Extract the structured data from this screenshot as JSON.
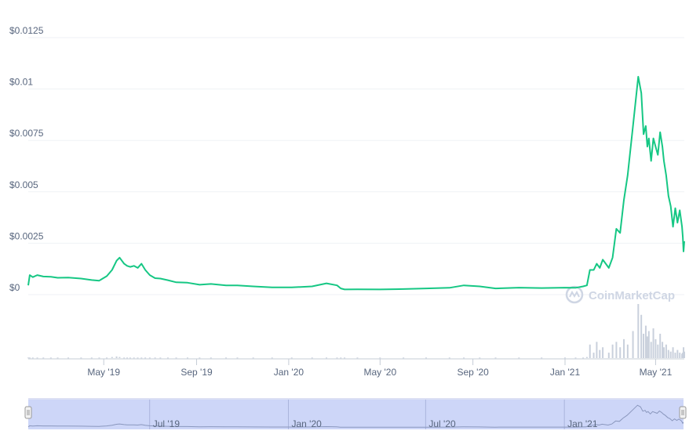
{
  "watermark": {
    "text": "CoinMarketCap"
  },
  "colors": {
    "line": "#16c784",
    "volume": "#c9d0dc",
    "navigator_bg": "#cdd6f8",
    "navigator_line": "#8a97bd",
    "grid": "#eff2f5"
  },
  "chart_data": {
    "type": "line",
    "title": "",
    "xlabel": "",
    "ylabel": "",
    "x_range": [
      "2019-01-21",
      "2021-06-08"
    ],
    "ylim": [
      0,
      0.0125
    ],
    "y_ticks": [
      {
        "value": 0,
        "label": "$0"
      },
      {
        "value": 0.0025,
        "label": "$0.0025"
      },
      {
        "value": 0.005,
        "label": "$0.005"
      },
      {
        "value": 0.0075,
        "label": "$0.0075"
      },
      {
        "value": 0.01,
        "label": "$0.01"
      },
      {
        "value": 0.0125,
        "label": "$0.0125"
      }
    ],
    "x_ticks": [
      {
        "date": "2019-05-01",
        "label": "May '19"
      },
      {
        "date": "2019-09-01",
        "label": "Sep '19"
      },
      {
        "date": "2020-01-01",
        "label": "Jan '20"
      },
      {
        "date": "2020-05-01",
        "label": "May '20"
      },
      {
        "date": "2020-09-01",
        "label": "Sep '20"
      },
      {
        "date": "2021-01-01",
        "label": "Jan '21"
      },
      {
        "date": "2021-05-01",
        "label": "May '21"
      }
    ],
    "navigator_ticks": [
      {
        "date": "2019-07-01",
        "label": "Jul '19"
      },
      {
        "date": "2020-01-01",
        "label": "Jan '20"
      },
      {
        "date": "2020-07-01",
        "label": "Jul '20"
      },
      {
        "date": "2021-01-01",
        "label": "Jan '21"
      }
    ],
    "grid": true,
    "legend": "none",
    "series": [
      {
        "x": [
          "2019-01-21",
          "2019-01-23",
          "2019-01-27",
          "2019-02-02",
          "2019-02-10",
          "2019-02-20",
          "2019-03-01",
          "2019-03-15",
          "2019-04-01",
          "2019-04-15",
          "2019-04-25",
          "2019-05-05",
          "2019-05-12",
          "2019-05-18",
          "2019-05-22",
          "2019-05-28",
          "2019-06-01",
          "2019-06-05",
          "2019-06-10",
          "2019-06-15",
          "2019-06-20",
          "2019-06-25",
          "2019-07-01",
          "2019-07-08",
          "2019-07-15",
          "2019-07-25",
          "2019-08-05",
          "2019-08-20",
          "2019-09-05",
          "2019-09-20",
          "2019-10-10",
          "2019-10-25",
          "2019-11-15",
          "2019-12-10",
          "2020-01-05",
          "2020-02-01",
          "2020-02-20",
          "2020-03-05",
          "2020-03-10",
          "2020-03-15",
          "2020-04-01",
          "2020-05-01",
          "2020-06-01",
          "2020-07-01",
          "2020-08-01",
          "2020-08-20",
          "2020-09-10",
          "2020-10-01",
          "2020-11-01",
          "2020-12-01",
          "2021-01-01",
          "2021-01-15",
          "2021-01-25",
          "2021-01-30",
          "2021-02-03",
          "2021-02-08",
          "2021-02-12",
          "2021-02-16",
          "2021-02-20",
          "2021-02-28",
          "2021-03-05",
          "2021-03-10",
          "2021-03-15",
          "2021-03-20",
          "2021-03-25",
          "2021-04-01",
          "2021-04-08",
          "2021-04-12",
          "2021-04-15",
          "2021-04-18",
          "2021-04-20",
          "2021-04-22",
          "2021-04-25",
          "2021-04-28",
          "2021-05-01",
          "2021-05-04",
          "2021-05-07",
          "2021-05-10",
          "2021-05-12",
          "2021-05-15",
          "2021-05-18",
          "2021-05-21",
          "2021-05-24",
          "2021-05-27",
          "2021-05-30",
          "2021-06-02",
          "2021-06-05",
          "2021-06-06",
          "2021-06-07",
          "2021-06-08"
        ],
        "values": [
          0.00045,
          0.00095,
          0.00085,
          0.00095,
          0.00088,
          0.00087,
          0.00082,
          0.00083,
          0.00078,
          0.00071,
          0.00068,
          0.0009,
          0.0012,
          0.00165,
          0.0018,
          0.0015,
          0.0014,
          0.00135,
          0.0014,
          0.0013,
          0.0015,
          0.0012,
          0.00095,
          0.0008,
          0.00078,
          0.0007,
          0.0006,
          0.00058,
          0.00048,
          0.00052,
          0.00045,
          0.00045,
          0.0004,
          0.00035,
          0.00035,
          0.0004,
          0.00055,
          0.00045,
          0.0003,
          0.00025,
          0.00026,
          0.00025,
          0.00027,
          0.0003,
          0.00033,
          0.00045,
          0.0004,
          0.0003,
          0.00034,
          0.00032,
          0.00034,
          0.00033,
          0.0004,
          0.00045,
          0.0012,
          0.0012,
          0.0015,
          0.0013,
          0.0017,
          0.0013,
          0.0018,
          0.0032,
          0.003,
          0.0046,
          0.0058,
          0.0082,
          0.0106,
          0.0098,
          0.0078,
          0.0082,
          0.0072,
          0.0076,
          0.0065,
          0.0076,
          0.0072,
          0.0068,
          0.0079,
          0.0072,
          0.0065,
          0.0058,
          0.0048,
          0.0043,
          0.0033,
          0.0042,
          0.0035,
          0.0041,
          0.0033,
          0.0028,
          0.0021,
          0.0026
        ],
        "volume": [
          0.01,
          0.01,
          0.01,
          0.01,
          0.01,
          0.01,
          0.01,
          0.01,
          0.01,
          0.01,
          0.01,
          0.01,
          0.02,
          0.03,
          0.02,
          0.01,
          0.01,
          0.01,
          0.01,
          0.01,
          0.01,
          0.01,
          0.01,
          0.01,
          0.01,
          0.01,
          0.01,
          0.01,
          0.01,
          0.01,
          0.01,
          0.01,
          0.01,
          0.01,
          0.01,
          0.01,
          0.01,
          0.01,
          0.01,
          0.01,
          0.01,
          0.01,
          0.01,
          0.01,
          0.01,
          0.01,
          0.01,
          0.01,
          0.01,
          0.01,
          0.01,
          0.01,
          0.01,
          0.02,
          0.25,
          0.1,
          0.3,
          0.15,
          0.2,
          0.1,
          0.25,
          0.3,
          0.2,
          0.35,
          0.25,
          0.5,
          1.0,
          0.8,
          0.45,
          0.6,
          0.4,
          0.5,
          0.3,
          0.55,
          0.35,
          0.25,
          0.45,
          0.3,
          0.2,
          0.25,
          0.15,
          0.12,
          0.2,
          0.1,
          0.15,
          0.1,
          0.08,
          0.1,
          0.2,
          0.12
        ]
      }
    ]
  }
}
